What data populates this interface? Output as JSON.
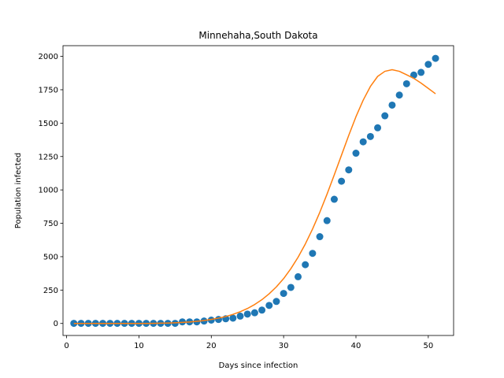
{
  "chart_data": {
    "type": "scatter",
    "title": "Minnehaha,South Dakota",
    "xlabel": "Days since infection",
    "ylabel": "Population infected",
    "xlim": [
      -0.5,
      53.5
    ],
    "ylim": [
      -90,
      2080
    ],
    "xticks": [
      0,
      10,
      20,
      30,
      40,
      50
    ],
    "yticks": [
      0,
      250,
      500,
      750,
      1000,
      1250,
      1500,
      1750,
      2000
    ],
    "grid": false,
    "colors": {
      "points": "#1f77b4",
      "fit": "#ff7f0e"
    },
    "series": [
      {
        "kind": "scatter",
        "x": [
          1,
          2,
          3,
          4,
          5,
          6,
          7,
          8,
          9,
          10,
          11,
          12,
          13,
          14,
          15,
          16,
          17,
          18,
          19,
          20,
          21,
          22,
          23,
          24,
          25,
          26,
          27,
          28,
          29,
          30,
          31,
          32,
          33,
          34,
          35,
          36,
          37,
          38,
          39,
          40,
          41,
          42,
          43,
          44,
          45,
          46,
          47,
          48,
          49,
          50,
          51
        ],
        "y": [
          1,
          1,
          1,
          1,
          1,
          1,
          1,
          1,
          1,
          1,
          1,
          1,
          1,
          1,
          1,
          12,
          12,
          12,
          18,
          25,
          30,
          35,
          40,
          55,
          70,
          80,
          100,
          135,
          165,
          225,
          270,
          350,
          440,
          525,
          650,
          770,
          930,
          1065,
          1150,
          1275,
          1360,
          1400,
          1465,
          1555,
          1635,
          1710,
          1795,
          1860,
          1880,
          1940,
          1985
        ]
      },
      {
        "kind": "line",
        "x": [
          1,
          2,
          3,
          4,
          5,
          6,
          7,
          8,
          9,
          10,
          11,
          12,
          13,
          14,
          15,
          16,
          17,
          18,
          19,
          20,
          21,
          22,
          23,
          24,
          25,
          26,
          27,
          28,
          29,
          30,
          31,
          32,
          33,
          34,
          35,
          36,
          37,
          38,
          39,
          40,
          41,
          42,
          43,
          44,
          45,
          46,
          47,
          48,
          49,
          50,
          51
        ],
        "y": [
          0,
          0,
          0,
          0,
          0,
          0,
          0,
          0,
          0,
          0,
          0,
          1,
          2,
          3,
          5,
          8,
          11,
          16,
          22,
          30,
          40,
          52,
          68,
          88,
          112,
          142,
          178,
          222,
          274,
          336,
          410,
          496,
          595,
          707,
          832,
          968,
          1112,
          1260,
          1408,
          1548,
          1672,
          1775,
          1850,
          1888,
          1900,
          1888,
          1862,
          1835,
          1800,
          1760,
          1720
        ]
      }
    ]
  }
}
